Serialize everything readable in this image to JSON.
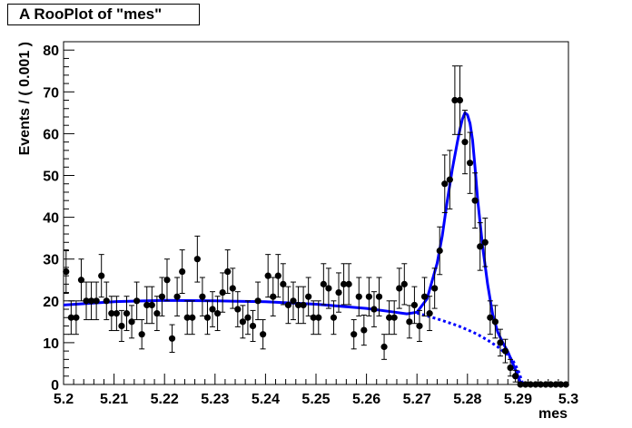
{
  "title": "A RooPlot of \"mes\"",
  "chart_data": {
    "type": "scatter",
    "title": "A RooPlot of \"mes\"",
    "xlabel": "mes",
    "ylabel": "Events / ( 0.001 )",
    "xlim": [
      5.2,
      5.3
    ],
    "ylim": [
      0,
      82
    ],
    "x_ticks": [
      "5.2",
      "5.21",
      "5.22",
      "5.23",
      "5.24",
      "5.25",
      "5.26",
      "5.27",
      "5.28",
      "5.29",
      "5.3"
    ],
    "y_ticks": [
      "0",
      "10",
      "20",
      "30",
      "40",
      "50",
      "60",
      "70",
      "80"
    ],
    "grid": false,
    "colors": {
      "data": "#000000",
      "fit": "#0000ff",
      "background": "#0000ff"
    },
    "series": [
      {
        "kind": "data-points",
        "x": [
          5.2005,
          5.2015,
          5.2025,
          5.2035,
          5.2045,
          5.2055,
          5.2065,
          5.2075,
          5.2085,
          5.2095,
          5.2105,
          5.2115,
          5.2125,
          5.2135,
          5.2145,
          5.2155,
          5.2165,
          5.2175,
          5.2185,
          5.2195,
          5.2205,
          5.2215,
          5.2225,
          5.2235,
          5.2245,
          5.2255,
          5.2265,
          5.2275,
          5.2285,
          5.2295,
          5.2305,
          5.2315,
          5.2325,
          5.2335,
          5.2345,
          5.2355,
          5.2365,
          5.2375,
          5.2385,
          5.2395,
          5.2405,
          5.2415,
          5.2425,
          5.2435,
          5.2445,
          5.2455,
          5.2465,
          5.2475,
          5.2485,
          5.2495,
          5.2505,
          5.2515,
          5.2525,
          5.2535,
          5.2545,
          5.2555,
          5.2565,
          5.2575,
          5.2585,
          5.2595,
          5.2605,
          5.2615,
          5.2625,
          5.2635,
          5.2645,
          5.2655,
          5.2665,
          5.2675,
          5.2685,
          5.2695,
          5.2705,
          5.2715,
          5.2725,
          5.2735,
          5.2745,
          5.2755,
          5.2765,
          5.2775,
          5.2785,
          5.2795,
          5.2805,
          5.2815,
          5.2825,
          5.2835,
          5.2845,
          5.2855,
          5.2865,
          5.2875,
          5.2885,
          5.2895,
          5.2905,
          5.2915,
          5.2925,
          5.2935,
          5.2945,
          5.2955,
          5.2965,
          5.2975,
          5.2985,
          5.2995
        ],
        "y": [
          27,
          16,
          16,
          25,
          20,
          20,
          20,
          26,
          20,
          17,
          17,
          14,
          17,
          15,
          20,
          12,
          19,
          19,
          17,
          21,
          25,
          11,
          21,
          27,
          16,
          16,
          30,
          21,
          16,
          18,
          17,
          22,
          27,
          23,
          18,
          15,
          16,
          14,
          20,
          12,
          26,
          21,
          26,
          24,
          19,
          20,
          19,
          19,
          21,
          16,
          16,
          24,
          23,
          16,
          22,
          24,
          24,
          12,
          21,
          13,
          21,
          18,
          21,
          9,
          16,
          16,
          23,
          24,
          15,
          19,
          14,
          21,
          17,
          23,
          32,
          48,
          49,
          68,
          68,
          58,
          53,
          44,
          33,
          34,
          16,
          15,
          10,
          8,
          4,
          2,
          0,
          0,
          0,
          0,
          0,
          0,
          0,
          0,
          0,
          0
        ],
        "yerr": [
          5.2,
          4,
          4,
          5,
          4.5,
          4.5,
          4.5,
          5.1,
          4.5,
          4.1,
          4.1,
          3.7,
          4.1,
          3.9,
          4.5,
          3.5,
          4.4,
          4.4,
          4.1,
          4.6,
          5,
          3.3,
          4.6,
          5.2,
          4,
          4,
          5.5,
          4.6,
          4,
          4.2,
          4.1,
          4.7,
          5.2,
          4.8,
          4.2,
          3.9,
          4,
          3.7,
          4.5,
          3.5,
          5.1,
          4.6,
          5.1,
          4.9,
          4.4,
          4.5,
          4.4,
          4.4,
          4.6,
          4,
          4,
          4.9,
          4.8,
          4,
          4.7,
          4.9,
          4.9,
          3.5,
          4.6,
          3.6,
          4.6,
          4.2,
          4.6,
          3,
          4,
          4,
          4.8,
          4.9,
          3.9,
          4.4,
          3.7,
          4.6,
          4.1,
          4.8,
          5.7,
          6.9,
          7,
          8.2,
          8.2,
          7.6,
          7.3,
          6.6,
          5.7,
          5.8,
          4,
          3.9,
          3.2,
          2.8,
          2,
          1.4,
          0,
          0,
          0,
          0,
          0,
          0,
          0,
          0,
          0,
          0
        ]
      },
      {
        "kind": "total-fit",
        "style": "solid",
        "x": [
          5.2,
          5.21,
          5.22,
          5.23,
          5.24,
          5.25,
          5.26,
          5.265,
          5.268,
          5.27,
          5.272,
          5.274,
          5.275,
          5.276,
          5.277,
          5.278,
          5.2785,
          5.279,
          5.2795,
          5.28,
          5.2805,
          5.281,
          5.2815,
          5.282,
          5.283,
          5.284,
          5.285,
          5.286,
          5.287,
          5.288,
          5.289,
          5.29,
          5.2905,
          5.291,
          5.3
        ],
        "y": [
          19,
          19.8,
          20.1,
          20,
          19.8,
          19.2,
          18.2,
          17.4,
          16.9,
          17.3,
          20.5,
          29,
          35.5,
          44,
          51.5,
          58,
          61,
          63.5,
          65,
          64.5,
          62.5,
          58.5,
          52,
          44.5,
          33,
          24,
          16.7,
          12.5,
          10,
          7.8,
          5,
          2,
          0.5,
          0,
          0
        ]
      },
      {
        "kind": "background-fit",
        "style": "dotted",
        "x": [
          5.27,
          5.272,
          5.274,
          5.276,
          5.278,
          5.28,
          5.282,
          5.284,
          5.286,
          5.288,
          5.289,
          5.29,
          5.2905,
          5.291
        ],
        "y": [
          17.1,
          16.4,
          15.7,
          14.9,
          14.1,
          13.1,
          12,
          10.6,
          9,
          7,
          5.7,
          3.5,
          1.8,
          0
        ]
      }
    ]
  }
}
